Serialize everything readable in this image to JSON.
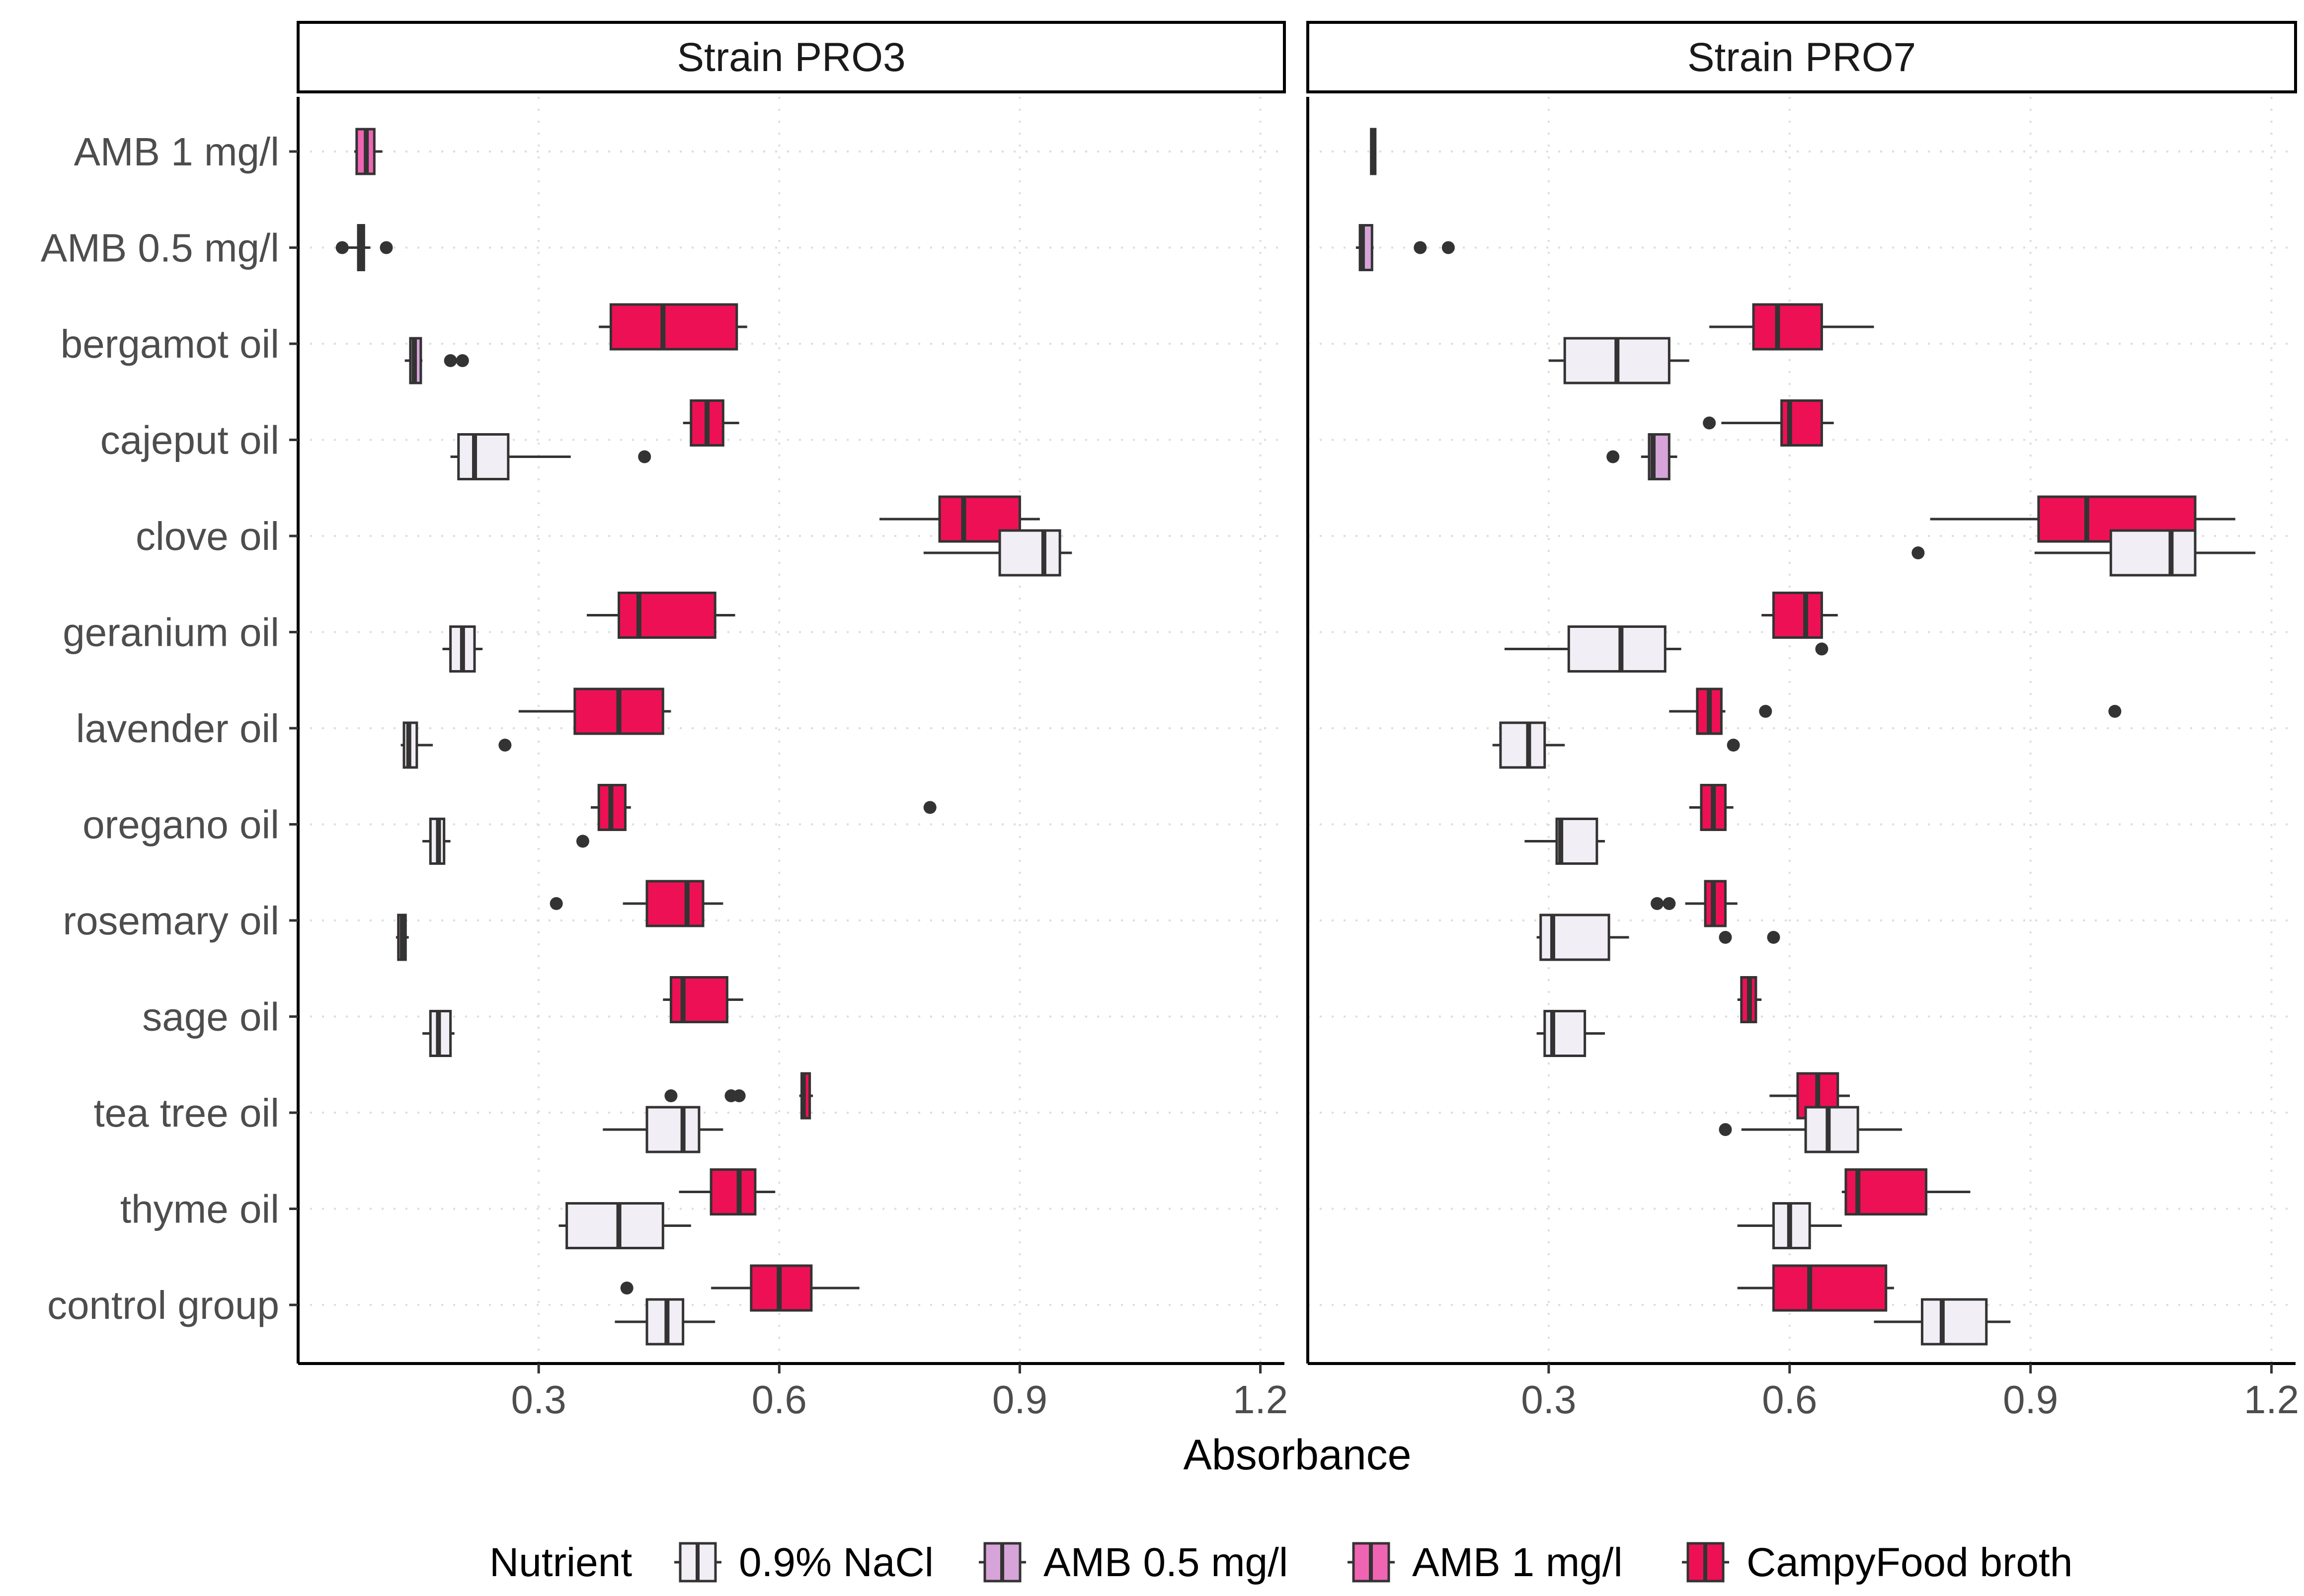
{
  "chart_data": {
    "type": "boxplot",
    "xlabel": "Absorbance",
    "ylabel": "",
    "xlim": [
      0,
      1.23
    ],
    "xticks": [
      "0.3",
      "0.6",
      "0.9",
      "1.2"
    ],
    "categories": [
      "AMB 1 mg/l",
      "AMB 0.5 mg/l",
      "bergamot oil",
      "cajeput oil",
      "clove oil",
      "geranium oil",
      "lavender oil",
      "oregano oil",
      "rosemary oil",
      "sage oil",
      "tea tree oil",
      "thyme oil",
      "control group"
    ],
    "legend": {
      "title": "Nutrient",
      "items": [
        {
          "label": "0.9% NaCl",
          "color": "#f2eef5"
        },
        {
          "label": "AMB 0.5 mg/l",
          "color": "#d6a4d9"
        },
        {
          "label": "AMB 1 mg/l",
          "color": "#f065b3"
        },
        {
          "label": "CampyFood broth",
          "color": "#ee1055"
        }
      ]
    },
    "panels": [
      {
        "strip": "Strain PRO3",
        "boxes": [
          {
            "category": "AMB 1 mg/l",
            "nutrient": "AMB 1 mg/l",
            "whisker_low": 0.07,
            "q1": 0.073,
            "median": 0.085,
            "q3": 0.095,
            "whisker_high": 0.105,
            "outliers": []
          },
          {
            "category": "AMB 0.5 mg/l",
            "nutrient": "AMB 0.5 mg/l",
            "whisker_low": 0.06,
            "q1": 0.075,
            "median": 0.078,
            "q3": 0.082,
            "whisker_high": 0.09,
            "outliers": [
              0.055,
              0.11
            ]
          },
          {
            "category": "bergamot oil",
            "nutrient": "CampyFood broth",
            "whisker_low": 0.375,
            "q1": 0.39,
            "median": 0.455,
            "q3": 0.547,
            "whisker_high": 0.56,
            "outliers": []
          },
          {
            "category": "bergamot oil",
            "nutrient": "AMB 0.5 mg/l",
            "whisker_low": 0.133,
            "q1": 0.14,
            "median": 0.145,
            "q3": 0.153,
            "whisker_high": 0.155,
            "outliers": [
              0.19,
              0.205
            ]
          },
          {
            "category": "cajeput oil",
            "nutrient": "CampyFood broth",
            "whisker_low": 0.48,
            "q1": 0.49,
            "median": 0.51,
            "q3": 0.53,
            "whisker_high": 0.55,
            "outliers": []
          },
          {
            "category": "cajeput oil",
            "nutrient": "0.9% NaCl",
            "whisker_low": 0.19,
            "q1": 0.2,
            "median": 0.22,
            "q3": 0.262,
            "whisker_high": 0.34,
            "outliers": [
              0.432
            ]
          },
          {
            "category": "clove oil",
            "nutrient": "CampyFood broth",
            "whisker_low": 0.725,
            "q1": 0.8,
            "median": 0.83,
            "q3": 0.9,
            "whisker_high": 0.925,
            "outliers": []
          },
          {
            "category": "clove oil",
            "nutrient": "0.9% NaCl",
            "whisker_low": 0.78,
            "q1": 0.875,
            "median": 0.93,
            "q3": 0.95,
            "whisker_high": 0.965,
            "outliers": []
          },
          {
            "category": "geranium oil",
            "nutrient": "CampyFood broth",
            "whisker_low": 0.36,
            "q1": 0.4,
            "median": 0.425,
            "q3": 0.52,
            "whisker_high": 0.545,
            "outliers": []
          },
          {
            "category": "geranium oil",
            "nutrient": "0.9% NaCl",
            "whisker_low": 0.18,
            "q1": 0.19,
            "median": 0.205,
            "q3": 0.22,
            "whisker_high": 0.23,
            "outliers": []
          },
          {
            "category": "lavender oil",
            "nutrient": "CampyFood broth",
            "whisker_low": 0.275,
            "q1": 0.345,
            "median": 0.4,
            "q3": 0.455,
            "whisker_high": 0.465,
            "outliers": []
          },
          {
            "category": "lavender oil",
            "nutrient": "0.9% NaCl",
            "whisker_low": 0.128,
            "q1": 0.132,
            "median": 0.138,
            "q3": 0.148,
            "whisker_high": 0.168,
            "outliers": [
              0.258
            ]
          },
          {
            "category": "oregano oil",
            "nutrient": "CampyFood broth",
            "whisker_low": 0.365,
            "q1": 0.375,
            "median": 0.39,
            "q3": 0.408,
            "whisker_high": 0.415,
            "outliers": [
              0.788
            ]
          },
          {
            "category": "oregano oil",
            "nutrient": "0.9% NaCl",
            "whisker_low": 0.155,
            "q1": 0.165,
            "median": 0.175,
            "q3": 0.182,
            "whisker_high": 0.19,
            "outliers": [
              0.355
            ]
          },
          {
            "category": "rosemary oil",
            "nutrient": "CampyFood broth",
            "whisker_low": 0.405,
            "q1": 0.435,
            "median": 0.485,
            "q3": 0.505,
            "whisker_high": 0.53,
            "outliers": [
              0.322
            ]
          },
          {
            "category": "rosemary oil",
            "nutrient": "AMB 0.5 mg/l",
            "whisker_low": 0.122,
            "q1": 0.125,
            "median": 0.13,
            "q3": 0.134,
            "whisker_high": 0.138,
            "outliers": []
          },
          {
            "category": "sage oil",
            "nutrient": "CampyFood broth",
            "whisker_low": 0.455,
            "q1": 0.465,
            "median": 0.48,
            "q3": 0.535,
            "whisker_high": 0.555,
            "outliers": []
          },
          {
            "category": "sage oil",
            "nutrient": "0.9% NaCl",
            "whisker_low": 0.155,
            "q1": 0.165,
            "median": 0.175,
            "q3": 0.19,
            "whisker_high": 0.195,
            "outliers": []
          },
          {
            "category": "tea tree oil",
            "nutrient": "CampyFood broth",
            "whisker_low": 0.625,
            "q1": 0.628,
            "median": 0.63,
            "q3": 0.638,
            "whisker_high": 0.642,
            "outliers": [
              0.465,
              0.54,
              0.55
            ]
          },
          {
            "category": "tea tree oil",
            "nutrient": "0.9% NaCl",
            "whisker_low": 0.38,
            "q1": 0.435,
            "median": 0.48,
            "q3": 0.5,
            "whisker_high": 0.53,
            "outliers": []
          },
          {
            "category": "thyme oil",
            "nutrient": "CampyFood broth",
            "whisker_low": 0.475,
            "q1": 0.515,
            "median": 0.55,
            "q3": 0.57,
            "whisker_high": 0.595,
            "outliers": []
          },
          {
            "category": "thyme oil",
            "nutrient": "0.9% NaCl",
            "whisker_low": 0.325,
            "q1": 0.335,
            "median": 0.4,
            "q3": 0.455,
            "whisker_high": 0.49,
            "outliers": []
          },
          {
            "category": "control group",
            "nutrient": "CampyFood broth",
            "whisker_low": 0.515,
            "q1": 0.565,
            "median": 0.6,
            "q3": 0.64,
            "whisker_high": 0.7,
            "outliers": [
              0.41
            ]
          },
          {
            "category": "control group",
            "nutrient": "0.9% NaCl",
            "whisker_low": 0.395,
            "q1": 0.435,
            "median": 0.46,
            "q3": 0.48,
            "whisker_high": 0.52,
            "outliers": []
          }
        ]
      },
      {
        "strip": "Strain PRO7",
        "boxes": [
          {
            "category": "AMB 1 mg/l",
            "nutrient": "AMB 1 mg/l",
            "whisker_low": 0.078,
            "q1": 0.079,
            "median": 0.082,
            "q3": 0.084,
            "whisker_high": 0.085,
            "outliers": []
          },
          {
            "category": "AMB 0.5 mg/l",
            "nutrient": "AMB 0.5 mg/l",
            "whisker_low": 0.06,
            "q1": 0.065,
            "median": 0.068,
            "q3": 0.08,
            "whisker_high": 0.082,
            "outliers": [
              0.14,
              0.175
            ]
          },
          {
            "category": "bergamot oil",
            "nutrient": "CampyFood broth",
            "whisker_low": 0.5,
            "q1": 0.555,
            "median": 0.585,
            "q3": 0.64,
            "whisker_high": 0.705,
            "outliers": []
          },
          {
            "category": "bergamot oil",
            "nutrient": "0.9% NaCl",
            "whisker_low": 0.3,
            "q1": 0.32,
            "median": 0.385,
            "q3": 0.45,
            "whisker_high": 0.475,
            "outliers": []
          },
          {
            "category": "cajeput oil",
            "nutrient": "CampyFood broth",
            "whisker_low": 0.515,
            "q1": 0.59,
            "median": 0.6,
            "q3": 0.64,
            "whisker_high": 0.655,
            "outliers": [
              0.5
            ]
          },
          {
            "category": "cajeput oil",
            "nutrient": "AMB 0.5 mg/l",
            "whisker_low": 0.415,
            "q1": 0.425,
            "median": 0.43,
            "q3": 0.45,
            "whisker_high": 0.46,
            "outliers": [
              0.38
            ]
          },
          {
            "category": "clove oil",
            "nutrient": "CampyFood broth",
            "whisker_low": 0.775,
            "q1": 0.91,
            "median": 0.97,
            "q3": 1.105,
            "whisker_high": 1.155,
            "outliers": []
          },
          {
            "category": "clove oil",
            "nutrient": "0.9% NaCl",
            "whisker_low": 0.905,
            "q1": 1.0,
            "median": 1.075,
            "q3": 1.105,
            "whisker_high": 1.18,
            "outliers": [
              0.76
            ]
          },
          {
            "category": "geranium oil",
            "nutrient": "CampyFood broth",
            "whisker_low": 0.565,
            "q1": 0.58,
            "median": 0.62,
            "q3": 0.64,
            "whisker_high": 0.66,
            "outliers": []
          },
          {
            "category": "geranium oil",
            "nutrient": "0.9% NaCl",
            "whisker_low": 0.245,
            "q1": 0.325,
            "median": 0.39,
            "q3": 0.445,
            "whisker_high": 0.465,
            "outliers": [
              0.64
            ]
          },
          {
            "category": "lavender oil",
            "nutrient": "CampyFood broth",
            "whisker_low": 0.45,
            "q1": 0.485,
            "median": 0.5,
            "q3": 0.515,
            "whisker_high": 0.52,
            "outliers": [
              0.57,
              1.005
            ]
          },
          {
            "category": "lavender oil",
            "nutrient": "0.9% NaCl",
            "whisker_low": 0.23,
            "q1": 0.24,
            "median": 0.275,
            "q3": 0.295,
            "whisker_high": 0.32,
            "outliers": [
              0.53
            ]
          },
          {
            "category": "oregano oil",
            "nutrient": "CampyFood broth",
            "whisker_low": 0.475,
            "q1": 0.49,
            "median": 0.505,
            "q3": 0.52,
            "whisker_high": 0.53,
            "outliers": []
          },
          {
            "category": "oregano oil",
            "nutrient": "0.9% NaCl",
            "whisker_low": 0.27,
            "q1": 0.31,
            "median": 0.315,
            "q3": 0.36,
            "whisker_high": 0.37,
            "outliers": []
          },
          {
            "category": "rosemary oil",
            "nutrient": "CampyFood broth",
            "whisker_low": 0.47,
            "q1": 0.495,
            "median": 0.505,
            "q3": 0.52,
            "whisker_high": 0.535,
            "outliers": [
              0.435,
              0.45
            ]
          },
          {
            "category": "rosemary oil",
            "nutrient": "0.9% NaCl",
            "whisker_low": 0.285,
            "q1": 0.29,
            "median": 0.305,
            "q3": 0.375,
            "whisker_high": 0.4,
            "outliers": [
              0.52,
              0.58
            ]
          },
          {
            "category": "sage oil",
            "nutrient": "CampyFood broth",
            "whisker_low": 0.535,
            "q1": 0.54,
            "median": 0.55,
            "q3": 0.558,
            "whisker_high": 0.565,
            "outliers": []
          },
          {
            "category": "sage oil",
            "nutrient": "0.9% NaCl",
            "whisker_low": 0.285,
            "q1": 0.295,
            "median": 0.305,
            "q3": 0.345,
            "whisker_high": 0.37,
            "outliers": []
          },
          {
            "category": "tea tree oil",
            "nutrient": "CampyFood broth",
            "whisker_low": 0.575,
            "q1": 0.61,
            "median": 0.635,
            "q3": 0.66,
            "whisker_high": 0.675,
            "outliers": []
          },
          {
            "category": "tea tree oil",
            "nutrient": "0.9% NaCl",
            "whisker_low": 0.54,
            "q1": 0.62,
            "median": 0.648,
            "q3": 0.685,
            "whisker_high": 0.74,
            "outliers": [
              0.52
            ]
          },
          {
            "category": "thyme oil",
            "nutrient": "CampyFood broth",
            "whisker_low": 0.665,
            "q1": 0.67,
            "median": 0.685,
            "q3": 0.77,
            "whisker_high": 0.825,
            "outliers": []
          },
          {
            "category": "thyme oil",
            "nutrient": "0.9% NaCl",
            "whisker_low": 0.535,
            "q1": 0.58,
            "median": 0.6,
            "q3": 0.625,
            "whisker_high": 0.665,
            "outliers": []
          },
          {
            "category": "control group",
            "nutrient": "CampyFood broth",
            "whisker_low": 0.535,
            "q1": 0.58,
            "median": 0.625,
            "q3": 0.72,
            "whisker_high": 0.73,
            "outliers": []
          },
          {
            "category": "control group",
            "nutrient": "0.9% NaCl",
            "whisker_low": 0.705,
            "q1": 0.765,
            "median": 0.79,
            "q3": 0.845,
            "whisker_high": 0.875,
            "outliers": []
          }
        ]
      }
    ]
  }
}
